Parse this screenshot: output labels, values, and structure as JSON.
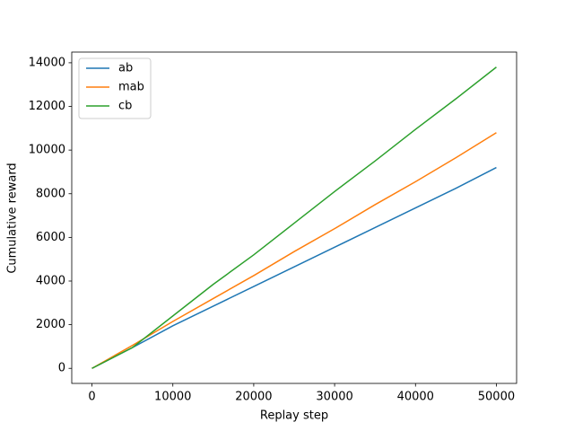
{
  "chart_data": {
    "type": "line",
    "x_label": "Replay step",
    "y_label": "Cumulative reward",
    "x": [
      0,
      5000,
      10000,
      15000,
      20000,
      25000,
      30000,
      35000,
      40000,
      45000,
      50000
    ],
    "series": [
      {
        "name": "ab",
        "color": "#1f77b4",
        "values": [
          0,
          950,
          1950,
          2850,
          3750,
          4650,
          5550,
          6450,
          7350,
          8250,
          9200
        ]
      },
      {
        "name": "mab",
        "color": "#ff7f0e",
        "values": [
          0,
          1050,
          2150,
          3200,
          4250,
          5350,
          6400,
          7500,
          8550,
          9650,
          10800
        ]
      },
      {
        "name": "cb",
        "color": "#2ca02c",
        "values": [
          0,
          950,
          2400,
          3850,
          5200,
          6650,
          8100,
          9500,
          10950,
          12350,
          13800
        ]
      }
    ],
    "xlim": [
      -2500,
      52500
    ],
    "ylim": [
      -690,
      14490
    ],
    "xticks": [
      0,
      10000,
      20000,
      30000,
      40000,
      50000
    ],
    "yticks": [
      0,
      2000,
      4000,
      6000,
      8000,
      10000,
      12000,
      14000
    ],
    "grid": false,
    "legend": "upper left"
  }
}
